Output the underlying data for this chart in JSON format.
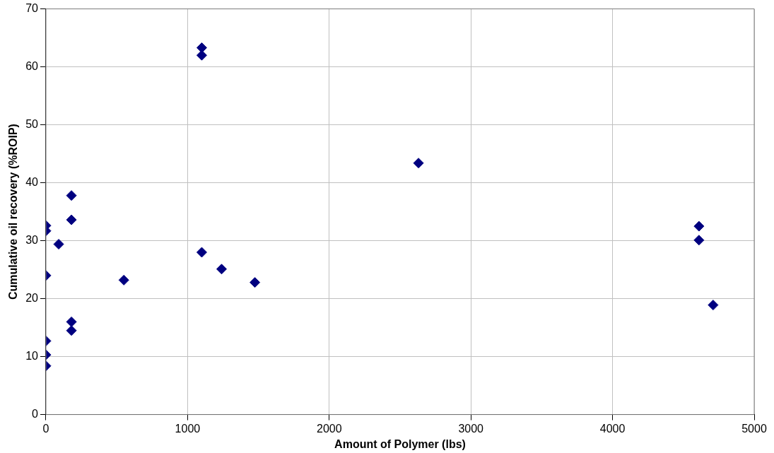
{
  "chart_data": {
    "type": "scatter",
    "xlabel": "Amount of Polymer (lbs)",
    "ylabel": "Cumulative oil recovery (%ROIP)",
    "x": [
      0,
      0,
      0,
      0,
      0,
      0,
      90,
      180,
      180,
      180,
      180,
      550,
      1100,
      1100,
      1100,
      1240,
      1475,
      2630,
      4610,
      4610,
      4710
    ],
    "series": [
      {
        "color": "#000080",
        "values": [
          32.6,
          31.7,
          24.0,
          12.7,
          10.3,
          8.4,
          29.4,
          37.8,
          33.6,
          16.0,
          14.5,
          23.2,
          63.3,
          62.0,
          28.0,
          25.1,
          22.8,
          43.4,
          32.5,
          30.1,
          18.9
        ]
      }
    ],
    "xlim": [
      0,
      5000
    ],
    "xticks": [
      0,
      1000,
      2000,
      3000,
      4000,
      5000
    ],
    "ylim": [
      0,
      70
    ],
    "yticks": [
      0,
      10,
      20,
      30,
      40,
      50,
      60,
      70
    ],
    "grid": true,
    "legend": false,
    "marker": "diamond"
  }
}
